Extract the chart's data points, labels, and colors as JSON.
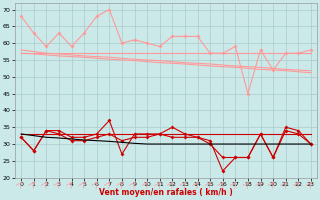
{
  "x": [
    0,
    1,
    2,
    3,
    4,
    5,
    6,
    7,
    8,
    9,
    10,
    11,
    12,
    13,
    14,
    15,
    16,
    17,
    18,
    19,
    20,
    21,
    22,
    23
  ],
  "rafales_line1": [
    68,
    63,
    59,
    63,
    59,
    63,
    68,
    70,
    60,
    61,
    60,
    59,
    62,
    62,
    62,
    57,
    57,
    59,
    45,
    58,
    52,
    57,
    57,
    58
  ],
  "rafales_flat1": [
    57,
    57,
    57,
    57,
    57,
    57,
    57,
    57,
    57,
    57,
    57,
    57,
    57,
    57,
    57,
    57,
    57,
    57,
    57,
    57,
    57,
    57,
    57,
    57
  ],
  "rafales_trend1": [
    58,
    57.5,
    57,
    56.8,
    56.5,
    56.2,
    56,
    55.8,
    55.5,
    55.2,
    55,
    54.8,
    54.5,
    54.2,
    54,
    53.8,
    53.5,
    53.2,
    53,
    52.8,
    52.5,
    52.2,
    52,
    51.8
  ],
  "rafales_trend2": [
    57,
    56.8,
    56.5,
    56.2,
    56,
    55.8,
    55.5,
    55.2,
    55,
    54.8,
    54.5,
    54.2,
    54,
    53.8,
    53.5,
    53.2,
    53,
    52.8,
    52.5,
    52.2,
    52,
    51.8,
    51.5,
    51.2
  ],
  "moyen_line1": [
    32,
    28,
    34,
    34,
    32,
    32,
    33,
    37,
    27,
    33,
    33,
    33,
    35,
    33,
    32,
    31,
    22,
    26,
    26,
    33,
    26,
    35,
    34,
    30
  ],
  "moyen_line2": [
    32,
    28,
    34,
    33,
    31,
    31,
    32,
    33,
    31,
    32,
    32,
    33,
    32,
    32,
    32,
    30,
    26,
    26,
    26,
    33,
    26,
    34,
    33,
    30
  ],
  "moyen_flat": [
    33,
    33,
    33,
    33,
    33,
    33,
    33,
    33,
    33,
    33,
    33,
    33,
    33,
    33,
    33,
    33,
    33,
    33,
    33,
    33,
    33,
    33,
    33,
    33
  ],
  "moyen_trend": [
    33,
    32.5,
    32,
    31.8,
    31.5,
    31.2,
    31,
    30.8,
    30.5,
    30.2,
    30,
    30,
    30,
    30,
    30,
    30,
    30,
    30,
    30,
    30,
    30,
    30,
    30,
    30
  ],
  "background_color": "#cce9e9",
  "grid_color": "#aacccc",
  "rafales_color": "#ff9999",
  "moyen_color": "#cc0000",
  "black_color": "#000000",
  "xlabel": "Vent moyen/en rafales ( km/h )",
  "xlabel_color": "#cc0000",
  "ylim": [
    20,
    72
  ],
  "yticks": [
    20,
    25,
    30,
    35,
    40,
    45,
    50,
    55,
    60,
    65,
    70
  ],
  "xticks": [
    0,
    1,
    2,
    3,
    4,
    5,
    6,
    7,
    8,
    9,
    10,
    11,
    12,
    13,
    14,
    15,
    16,
    17,
    18,
    19,
    20,
    21,
    22,
    23
  ]
}
